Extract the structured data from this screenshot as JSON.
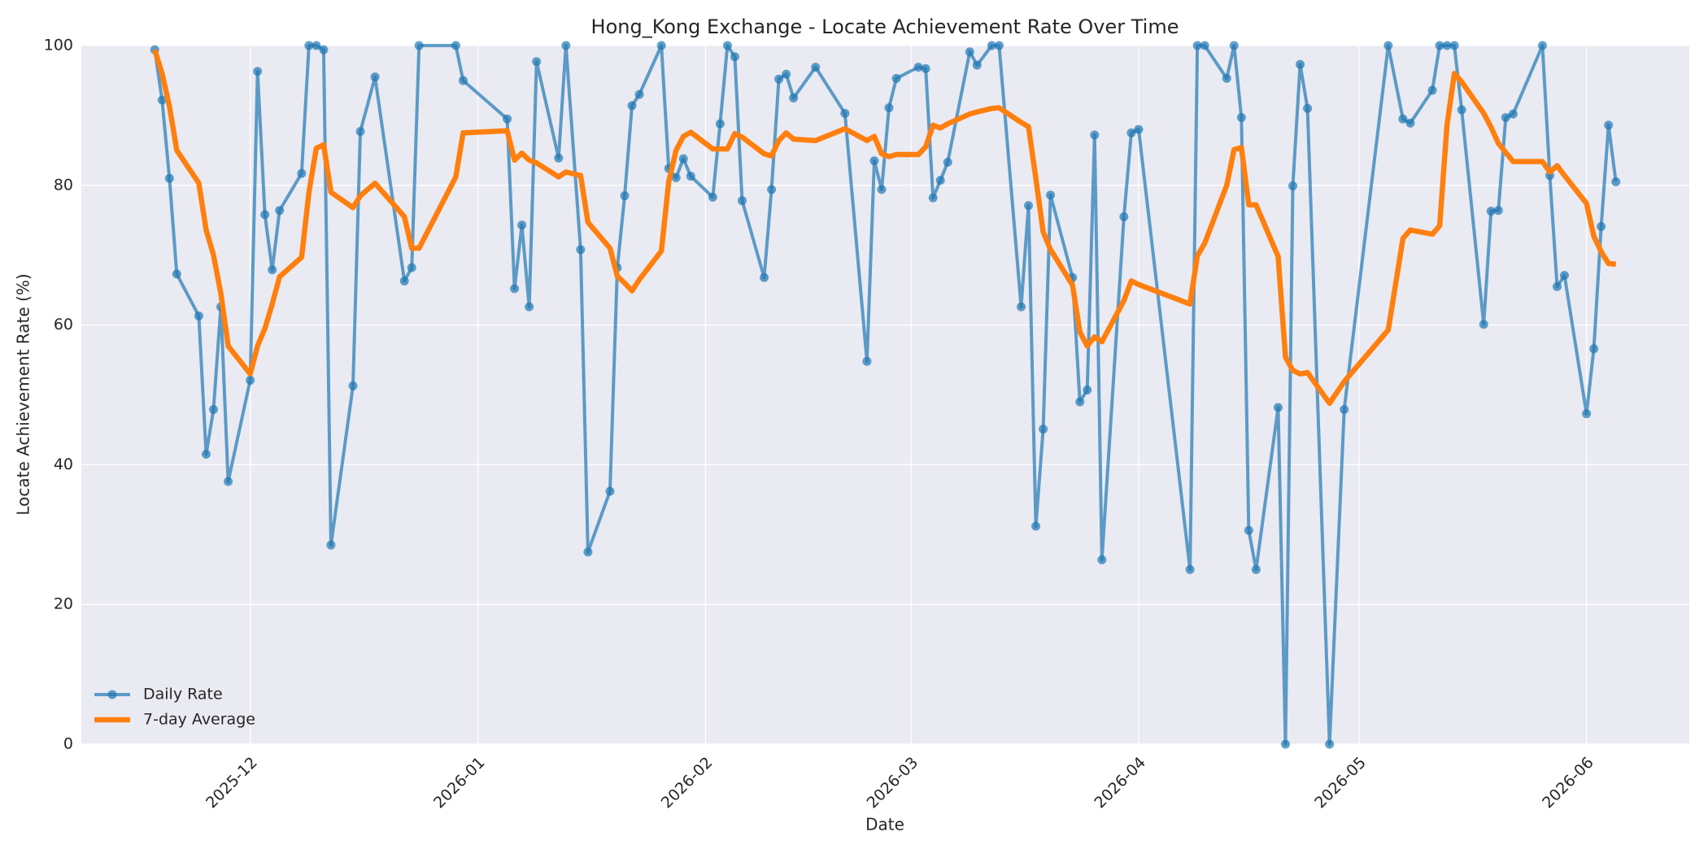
{
  "chart_data": {
    "type": "line",
    "title": "Hong_Kong Exchange - Locate Achievement Rate Over Time",
    "x_label": "Date",
    "y_label": "Locate Achievement Rate (%)",
    "x": [
      "2025-11-18",
      "2025-11-19",
      "2025-11-20",
      "2025-11-21",
      "2025-11-24",
      "2025-11-25",
      "2025-11-26",
      "2025-11-27",
      "2025-11-28",
      "2025-12-01",
      "2025-12-02",
      "2025-12-03",
      "2025-12-04",
      "2025-12-05",
      "2025-12-08",
      "2025-12-09",
      "2025-12-10",
      "2025-12-11",
      "2025-12-12",
      "2025-12-15",
      "2025-12-16",
      "2025-12-18",
      "2025-12-22",
      "2025-12-23",
      "2025-12-24",
      "2025-12-29",
      "2025-12-30",
      "2026-01-05",
      "2026-01-06",
      "2026-01-07",
      "2026-01-08",
      "2026-01-09",
      "2026-01-12",
      "2026-01-13",
      "2026-01-15",
      "2026-01-16",
      "2026-01-19",
      "2026-01-20",
      "2026-01-21",
      "2026-01-22",
      "2026-01-23",
      "2026-01-26",
      "2026-01-27",
      "2026-01-28",
      "2026-01-29",
      "2026-01-30",
      "2026-02-02",
      "2026-02-03",
      "2026-02-04",
      "2026-02-05",
      "2026-02-06",
      "2026-02-09",
      "2026-02-10",
      "2026-02-11",
      "2026-02-12",
      "2026-02-13",
      "2026-02-16",
      "2026-02-20",
      "2026-02-23",
      "2026-02-24",
      "2026-02-25",
      "2026-02-26",
      "2026-02-27",
      "2026-03-02",
      "2026-03-03",
      "2026-03-04",
      "2026-03-05",
      "2026-03-06",
      "2026-03-09",
      "2026-03-10",
      "2026-03-12",
      "2026-03-13",
      "2026-03-16",
      "2026-03-17",
      "2026-03-18",
      "2026-03-19",
      "2026-03-20",
      "2026-03-23",
      "2026-03-24",
      "2026-03-25",
      "2026-03-26",
      "2026-03-27",
      "2026-03-30",
      "2026-03-31",
      "2026-04-01",
      "2026-04-08",
      "2026-04-09",
      "2026-04-10",
      "2026-04-13",
      "2026-04-14",
      "2026-04-15",
      "2026-04-16",
      "2026-04-17",
      "2026-04-20",
      "2026-04-21",
      "2026-04-22",
      "2026-04-23",
      "2026-04-24",
      "2026-04-27",
      "2026-04-29",
      "2026-05-05",
      "2026-05-07",
      "2026-05-08",
      "2026-05-11",
      "2026-05-12",
      "2026-05-13",
      "2026-05-14",
      "2026-05-15",
      "2026-05-18",
      "2026-05-19",
      "2026-05-20",
      "2026-05-21",
      "2026-05-22",
      "2026-05-26",
      "2026-05-27",
      "2026-05-28",
      "2026-05-29",
      "2026-06-01",
      "2026-06-02",
      "2026-06-03",
      "2026-06-04",
      "2026-06-05"
    ],
    "series": [
      {
        "name": "Daily Rate",
        "color": "#1f77b4",
        "opacity": 0.7,
        "markers": true,
        "values": [
          99.4,
          92.2,
          81,
          67.3,
          61.3,
          41.5,
          47.9,
          62.6,
          37.6,
          52.1,
          96.3,
          75.8,
          67.9,
          76.4,
          81.7,
          100,
          100,
          99.4,
          28.5,
          51.3,
          87.7,
          95.5,
          66.3,
          68.2,
          100,
          100,
          95,
          89.5,
          65.2,
          74.3,
          62.6,
          97.7,
          83.9,
          100,
          70.8,
          27.5,
          36.2,
          68.2,
          78.5,
          91.4,
          93,
          100,
          82.4,
          81.1,
          83.8,
          81.3,
          78.3,
          88.8,
          100,
          98.4,
          77.8,
          66.8,
          79.4,
          95.2,
          95.9,
          92.5,
          96.9,
          90.3,
          54.8,
          83.5,
          79.4,
          91.1,
          95.3,
          96.9,
          96.7,
          78.2,
          80.7,
          83.3,
          99.1,
          97.2,
          100,
          100,
          62.6,
          77.1,
          31.2,
          45.1,
          78.6,
          66.8,
          49,
          50.7,
          87.2,
          26.4,
          75.5,
          87.5,
          88,
          25,
          100,
          100,
          95.3,
          100,
          89.7,
          30.6,
          25,
          48.2,
          0,
          79.9,
          97.3,
          91,
          0,
          47.9,
          100,
          89.5,
          88.9,
          93.6,
          100,
          100,
          100,
          90.8,
          60.1,
          76.3,
          76.4,
          89.7,
          90.2,
          100,
          81.4,
          65.5,
          67.1,
          47.3,
          56.6,
          74.1,
          88.6,
          80.5
        ]
      },
      {
        "name": "7-day Average",
        "color": "#ff7f0e",
        "opacity": 1,
        "markers": false,
        "values": [
          99.4,
          96,
          91.3,
          85,
          80.3,
          73.6,
          70,
          64.5,
          57,
          53,
          57,
          59.5,
          63,
          66.9,
          69.7,
          79,
          85.3,
          85.8,
          79,
          76.8,
          78.5,
          80.3,
          75.5,
          71,
          71,
          81.2,
          87.5,
          87.8,
          83.6,
          84.6,
          83.6,
          83.2,
          81.2,
          81.9,
          81.4,
          74.7,
          71,
          67,
          66,
          64.9,
          66.5,
          70.6,
          80.5,
          85,
          87,
          87.6,
          85.2,
          85.2,
          85.2,
          87.4,
          86.9,
          84.5,
          84.2,
          86.4,
          87.5,
          86.6,
          86.4,
          88.1,
          86.4,
          87,
          84.5,
          84.1,
          84.4,
          84.4,
          85.5,
          88.6,
          88.2,
          88.8,
          90.2,
          90.5,
          91,
          91.1,
          89,
          88.4,
          81,
          73.3,
          70.8,
          65.7,
          59,
          57,
          58.3,
          57.6,
          63.5,
          66.3,
          65.8,
          63,
          69.9,
          71.7,
          80,
          85.1,
          85.4,
          77.2,
          77.2,
          69.8,
          55.4,
          53.5,
          53,
          53.2,
          48.8,
          51.9,
          59.3,
          72.4,
          73.6,
          73,
          74.2,
          88.6,
          96,
          94.8,
          90.3,
          88.3,
          86,
          84.7,
          83.4,
          83.4,
          81.9,
          82.8,
          81.4,
          77.4,
          72.7,
          70.5,
          68.8,
          68.7
        ]
      }
    ],
    "xlim": [
      "2025-11-08",
      "2026-06-15"
    ],
    "xticks": [
      {
        "value": "2025-12-01",
        "label": "2025-12"
      },
      {
        "value": "2026-01-01",
        "label": "2026-01"
      },
      {
        "value": "2026-02-01",
        "label": "2026-02"
      },
      {
        "value": "2026-03-01",
        "label": "2026-03"
      },
      {
        "value": "2026-04-01",
        "label": "2026-04"
      },
      {
        "value": "2026-05-01",
        "label": "2026-05"
      },
      {
        "value": "2026-06-01",
        "label": "2026-06"
      }
    ],
    "ylim": [
      0,
      100
    ],
    "yticks": [
      0,
      20,
      40,
      60,
      80,
      100
    ],
    "grid": true,
    "legend": "lower left"
  }
}
